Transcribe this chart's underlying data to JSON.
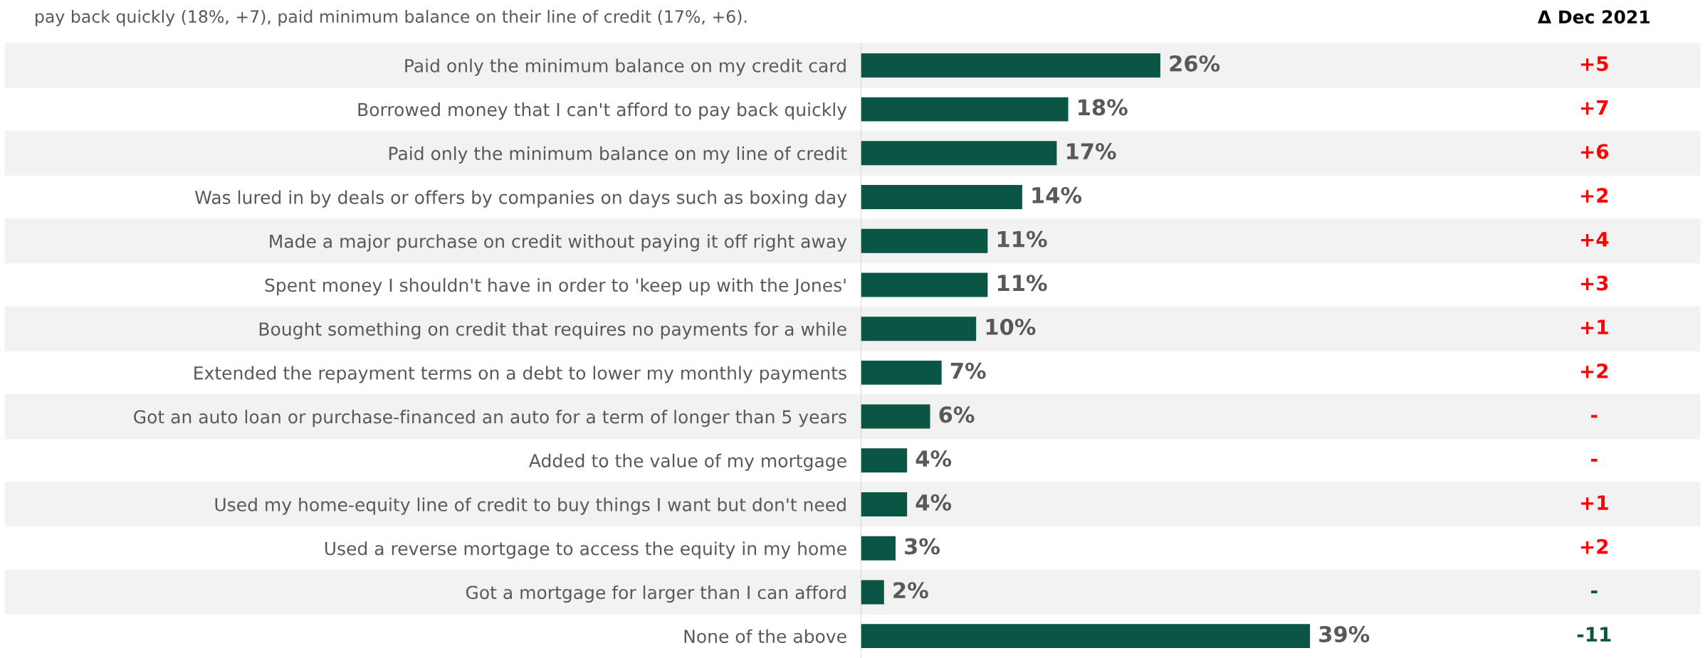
{
  "chart_data": {
    "type": "bar",
    "orientation": "horizontal",
    "categories": [
      "Paid only the minimum balance on my credit card",
      "Borrowed money that I can't afford to pay back quickly",
      "Paid only the minimum balance on my line of credit",
      "Was lured in by deals or offers by companies on days such as boxing day",
      "Made a major purchase on credit without paying it off right away",
      "Spent money I shouldn't have in order to 'keep up with the Jones'",
      "Bought something on credit that requires no payments for a while",
      "Extended the repayment terms on a debt to lower my monthly payments",
      "Got an auto loan or purchase-financed an auto for a term of longer than 5 years",
      "Added to the value of my mortgage",
      "Used my home-equity line of credit to buy things I want but don't need",
      "Used a reverse mortgage to access the equity in my home",
      "Got a mortgage for larger than I can afford",
      "None of the above"
    ],
    "values": [
      26,
      18,
      17,
      14,
      11,
      11,
      10,
      7,
      6,
      4,
      4,
      3,
      2,
      39
    ],
    "value_labels": [
      "26%",
      "18%",
      "17%",
      "14%",
      "11%",
      "11%",
      "10%",
      "7%",
      "6%",
      "4%",
      "4%",
      "3%",
      "2%",
      "39%"
    ],
    "color": "#0b5544",
    "tick_labels": "y",
    "annotations": [
      "pay back quickly (18%, +7), paid minimum balance on their line of credit (17%, +6).",
      "Δ Dec 2021",
      "+5",
      "+7",
      "+6",
      "+2",
      "+4",
      "+3",
      "+1",
      "+2",
      "-",
      "-",
      "+1",
      "+2",
      "-",
      "-11"
    ]
  }
}
